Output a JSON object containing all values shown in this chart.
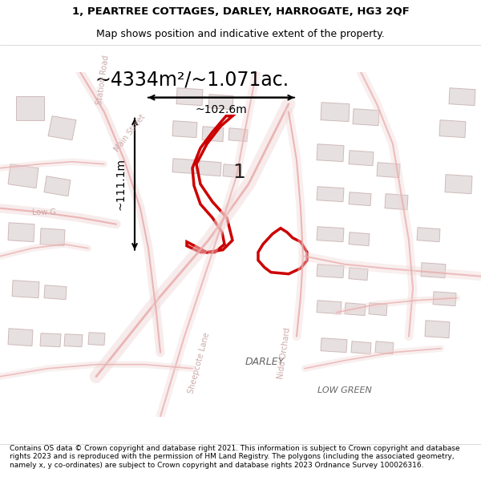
{
  "title_line1": "1, PEARTREE COTTAGES, DARLEY, HARROGATE, HG3 2QF",
  "title_line2": "Map shows position and indicative extent of the property.",
  "area_text": "~4334m²/~1.071ac.",
  "dim_width": "~102.6m",
  "dim_height": "~111.1m",
  "label_number": "1",
  "label_darley": "DARLEY",
  "label_low_green": "LOW GREEN",
  "label_main_street1": "Main Street",
  "label_nidd_orchard": "Nidd Orchard",
  "label_station_road": "Station Road",
  "label_low_green_road": "Low G",
  "label_sheepcote": "Sheepcote Lane",
  "footer_text": "Contains OS data © Crown copyright and database right 2021. This information is subject to Crown copyright and database rights 2023 and is reproduced with the permission of HM Land Registry. The polygons (including the associated geometry, namely x, y co-ordinates) are subject to Crown copyright and database rights 2023 Ordnance Survey 100026316.",
  "highlight_color": "#cc0000",
  "road_color": "#e8a8a8",
  "bld_face": "#d8cccc",
  "bld_edge": "#b89898"
}
